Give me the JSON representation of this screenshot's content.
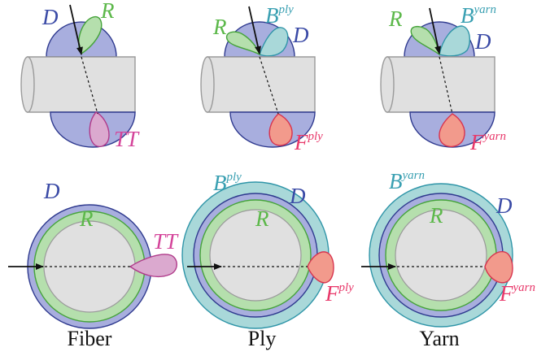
{
  "colors": {
    "d_fill": "#a8aede",
    "d_stroke": "#2f3a8f",
    "r_fill": "#b5dfad",
    "r_stroke": "#45a33a",
    "tt_fill": "#dba9cf",
    "tt_stroke": "#b03a8a",
    "b_fill": "#a9d8d9",
    "b_stroke": "#2f95a8",
    "f_fill": "#f29a8c",
    "f_stroke": "#d8344f",
    "cylinder_fill": "#e0e0e0",
    "cylinder_stroke": "#9a9a9a"
  },
  "labels": {
    "D": "D",
    "R": "R",
    "TT": "TT",
    "B": "B",
    "F": "F",
    "ply": "ply",
    "yarn": "yarn"
  },
  "captions": {
    "fiber": "Fiber",
    "ply": "Ply",
    "yarn": "Yarn"
  }
}
